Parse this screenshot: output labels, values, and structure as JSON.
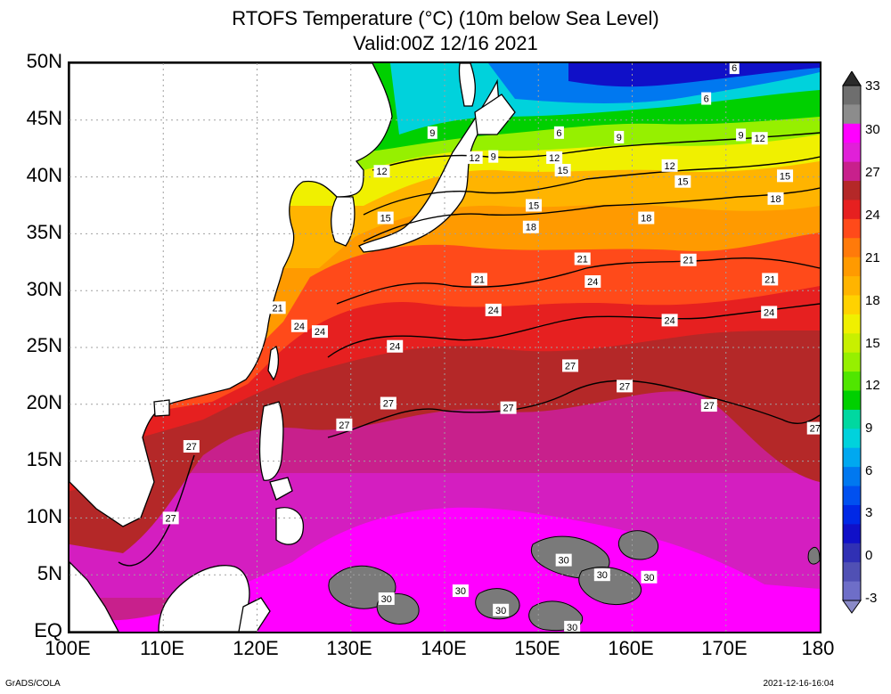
{
  "title_line1": "RTOFS Temperature (°C) (10m below Sea Level)",
  "title_line2": "Valid:00Z 12/16 2021",
  "lat_ticks": [
    "50N",
    "45N",
    "40N",
    "35N",
    "30N",
    "25N",
    "20N",
    "15N",
    "10N",
    "5N",
    "EQ"
  ],
  "lon_ticks": [
    "100E",
    "110E",
    "120E",
    "130E",
    "140E",
    "150E",
    "160E",
    "170E",
    "180"
  ],
  "colorbar_labels": [
    "33",
    "30",
    "27",
    "24",
    "21",
    "18",
    "15",
    "12",
    "9",
    "6",
    "3",
    "0",
    "-3"
  ],
  "colorbar_colors": [
    "#6e6e6e",
    "#8c8c8c",
    "#ff00ff",
    "#e020d8",
    "#c8208c",
    "#b42828",
    "#e62020",
    "#ff4a1a",
    "#ff7a0a",
    "#ff9a00",
    "#ffb400",
    "#ffd200",
    "#f0f000",
    "#c8f000",
    "#96f000",
    "#50e600",
    "#00d000",
    "#00d8a0",
    "#00d2dc",
    "#00a8f0",
    "#0078f0",
    "#0050f0",
    "#0028e6",
    "#1010c8",
    "#3030b4",
    "#5050b4",
    "#6e6ec8"
  ],
  "footer_left": "GrADS/COLA",
  "footer_right": "2021-12-16-16:04",
  "contour_labels": [
    {
      "text": "6",
      "lon": 170.9,
      "lat": 49.6
    },
    {
      "text": "6",
      "lon": 167.9,
      "lat": 46.9
    },
    {
      "text": "6",
      "lon": 152.2,
      "lat": 43.9
    },
    {
      "text": "9",
      "lon": 158.6,
      "lat": 43.5
    },
    {
      "text": "9",
      "lon": 171.6,
      "lat": 43.7
    },
    {
      "text": "12",
      "lon": 173.6,
      "lat": 43.4
    },
    {
      "text": "9",
      "lon": 138.7,
      "lat": 43.9
    },
    {
      "text": "9",
      "lon": 145.2,
      "lat": 41.8
    },
    {
      "text": "12",
      "lon": 143.2,
      "lat": 41.7
    },
    {
      "text": "12",
      "lon": 133.3,
      "lat": 40.5
    },
    {
      "text": "12",
      "lon": 151.7,
      "lat": 41.7
    },
    {
      "text": "15",
      "lon": 152.6,
      "lat": 40.6
    },
    {
      "text": "12",
      "lon": 164.0,
      "lat": 41.0
    },
    {
      "text": "15",
      "lon": 165.4,
      "lat": 39.6
    },
    {
      "text": "15",
      "lon": 176.3,
      "lat": 40.1
    },
    {
      "text": "15",
      "lon": 149.5,
      "lat": 37.5
    },
    {
      "text": "18",
      "lon": 149.2,
      "lat": 35.6
    },
    {
      "text": "18",
      "lon": 161.5,
      "lat": 36.4
    },
    {
      "text": "18",
      "lon": 175.3,
      "lat": 38.1
    },
    {
      "text": "15",
      "lon": 133.7,
      "lat": 36.4
    },
    {
      "text": "21",
      "lon": 154.7,
      "lat": 32.8
    },
    {
      "text": "21",
      "lon": 166.0,
      "lat": 32.7
    },
    {
      "text": "21",
      "lon": 143.7,
      "lat": 31.0
    },
    {
      "text": "24",
      "lon": 155.8,
      "lat": 30.8
    },
    {
      "text": "21",
      "lon": 174.7,
      "lat": 31.0
    },
    {
      "text": "21",
      "lon": 122.2,
      "lat": 28.5
    },
    {
      "text": "24",
      "lon": 145.2,
      "lat": 28.3
    },
    {
      "text": "24",
      "lon": 164.0,
      "lat": 27.4
    },
    {
      "text": "24",
      "lon": 174.6,
      "lat": 28.1
    },
    {
      "text": "24",
      "lon": 124.5,
      "lat": 26.9
    },
    {
      "text": "24",
      "lon": 126.7,
      "lat": 26.4
    },
    {
      "text": "24",
      "lon": 134.7,
      "lat": 25.1
    },
    {
      "text": "27",
      "lon": 153.4,
      "lat": 23.4
    },
    {
      "text": "27",
      "lon": 159.2,
      "lat": 21.6
    },
    {
      "text": "27",
      "lon": 134.0,
      "lat": 20.1
    },
    {
      "text": "27",
      "lon": 146.8,
      "lat": 19.7
    },
    {
      "text": "27",
      "lon": 168.2,
      "lat": 19.9
    },
    {
      "text": "27",
      "lon": 129.3,
      "lat": 18.2
    },
    {
      "text": "27",
      "lon": 179.5,
      "lat": 17.9
    },
    {
      "text": "27",
      "lon": 113.0,
      "lat": 16.3
    },
    {
      "text": "27",
      "lon": 110.8,
      "lat": 10.0
    },
    {
      "text": "30",
      "lon": 152.7,
      "lat": 6.3
    },
    {
      "text": "30",
      "lon": 156.8,
      "lat": 5.0
    },
    {
      "text": "30",
      "lon": 161.8,
      "lat": 4.8
    },
    {
      "text": "30",
      "lon": 133.8,
      "lat": 2.9
    },
    {
      "text": "30",
      "lon": 141.7,
      "lat": 3.6
    },
    {
      "text": "30",
      "lon": 146.0,
      "lat": 1.9
    },
    {
      "text": "30",
      "lon": 153.6,
      "lat": 0.4
    }
  ]
}
